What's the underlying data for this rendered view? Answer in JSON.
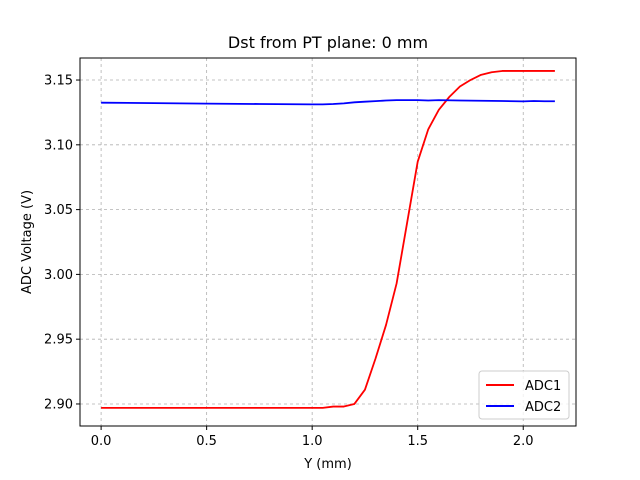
{
  "chart_data": {
    "type": "line",
    "title": "Dst from PT plane: 0 mm",
    "xlabel": "Y (mm)",
    "ylabel": "ADC Voltage (V)",
    "xlim": [
      -0.1,
      2.25
    ],
    "ylim": [
      2.883,
      3.167
    ],
    "xticks": [
      0.0,
      0.5,
      1.0,
      1.5,
      2.0
    ],
    "xtick_labels": [
      "0.0",
      "0.5",
      "1.0",
      "1.5",
      "2.0"
    ],
    "yticks": [
      2.9,
      2.95,
      3.0,
      3.05,
      3.1,
      3.15
    ],
    "ytick_labels": [
      "2.90",
      "2.95",
      "3.00",
      "3.05",
      "3.10",
      "3.15"
    ],
    "grid": true,
    "legend_position": "lower-right",
    "series": [
      {
        "name": "ADC1",
        "color": "#ff0000",
        "x": [
          0.0,
          0.05,
          0.1,
          0.15,
          0.2,
          0.25,
          0.3,
          0.35,
          0.4,
          0.45,
          0.5,
          0.55,
          0.6,
          0.65,
          0.7,
          0.75,
          0.8,
          0.85,
          0.9,
          0.95,
          1.0,
          1.05,
          1.1,
          1.15,
          1.2,
          1.25,
          1.3,
          1.35,
          1.4,
          1.45,
          1.5,
          1.55,
          1.6,
          1.65,
          1.7,
          1.75,
          1.8,
          1.85,
          1.9,
          1.95,
          2.0,
          2.05,
          2.1,
          2.15
        ],
        "y": [
          2.897,
          2.897,
          2.897,
          2.897,
          2.897,
          2.897,
          2.897,
          2.897,
          2.897,
          2.897,
          2.897,
          2.897,
          2.897,
          2.897,
          2.897,
          2.897,
          2.897,
          2.897,
          2.897,
          2.897,
          2.897,
          2.897,
          2.898,
          2.898,
          2.9,
          2.911,
          2.935,
          2.961,
          2.993,
          3.04,
          3.087,
          3.112,
          3.127,
          3.137,
          3.145,
          3.15,
          3.154,
          3.156,
          3.157,
          3.157,
          3.157,
          3.157,
          3.157,
          3.157
        ]
      },
      {
        "name": "ADC2",
        "color": "#0000ff",
        "x": [
          0.0,
          0.25,
          0.5,
          0.75,
          1.0,
          1.05,
          1.1,
          1.15,
          1.2,
          1.25,
          1.3,
          1.35,
          1.4,
          1.45,
          1.5,
          1.55,
          1.6,
          1.7,
          1.8,
          1.9,
          2.0,
          2.05,
          2.1,
          2.15
        ],
        "y": [
          3.1325,
          3.1322,
          3.1318,
          3.1315,
          3.1312,
          3.1312,
          3.1315,
          3.132,
          3.1328,
          3.1333,
          3.1337,
          3.1342,
          3.1345,
          3.1345,
          3.1345,
          3.1342,
          3.1345,
          3.1342,
          3.134,
          3.1338,
          3.1335,
          3.1338,
          3.1336,
          3.1336
        ]
      }
    ]
  }
}
